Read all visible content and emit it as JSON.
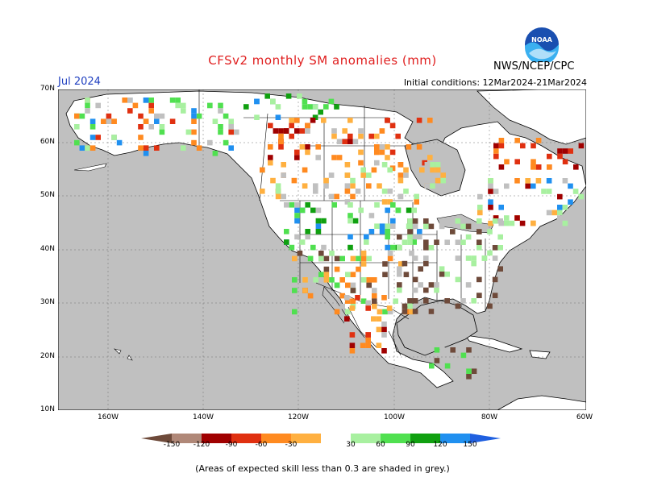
{
  "title": "CFSv2 monthly SM anomalies (mm)",
  "valid_month": "Jul 2024",
  "org": "NWS/NCEP/CPC",
  "initial_conditions": "Initial conditions: 12Mar2024-21Mar2024",
  "logo_text": "NOAA",
  "footnote": "(Areas of expected skill less than 0.3 are shaded in grey.)",
  "map": {
    "lat_labels": [
      "70N",
      "60N",
      "50N",
      "40N",
      "30N",
      "20N",
      "10N"
    ],
    "lon_labels": [
      "160W",
      "140W",
      "120W",
      "100W",
      "80W",
      "60W"
    ],
    "land_color": "#ffffff",
    "ocean_color": "#c0c0c0",
    "low_skill_color": "#c0c0c0"
  },
  "colorbar": {
    "ticks": [
      "-150",
      "-120",
      "-90",
      "-60",
      "-30",
      "30",
      "60",
      "90",
      "120",
      "150"
    ],
    "bins": [
      {
        "color": "#6e4a3a"
      },
      {
        "color": "#b08878"
      },
      {
        "color": "#a00000"
      },
      {
        "color": "#e03010"
      },
      {
        "color": "#ff8a20"
      },
      {
        "color": "#ffb040"
      },
      {
        "color": "#ffffff"
      },
      {
        "color": "#a8f0a0"
      },
      {
        "color": "#50e050"
      },
      {
        "color": "#10a010"
      },
      {
        "color": "#2090f0"
      },
      {
        "color": "#2060e0"
      }
    ]
  }
}
